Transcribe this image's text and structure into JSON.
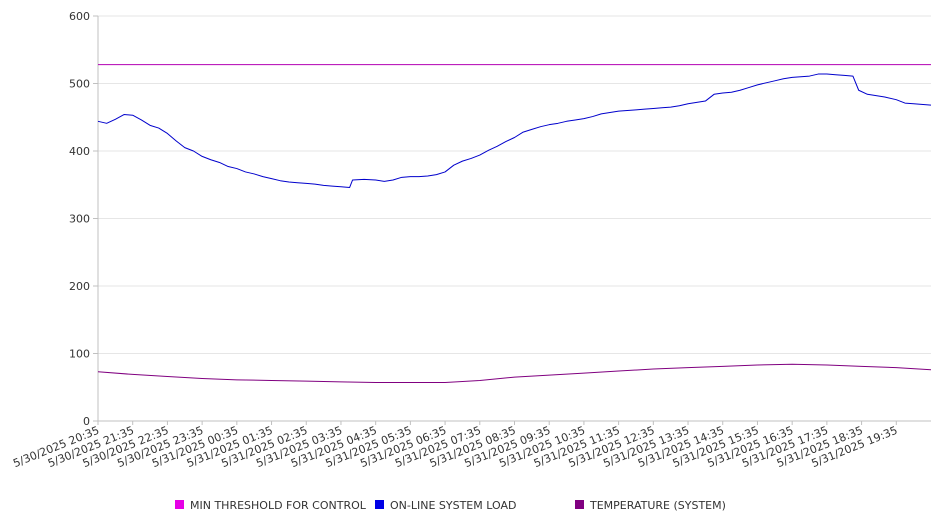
{
  "chart_data": {
    "type": "line",
    "title": "",
    "xlabel": "",
    "ylabel": "",
    "ylim": [
      0,
      600
    ],
    "yticks": [
      0,
      100,
      200,
      300,
      400,
      500,
      600
    ],
    "grid": true,
    "legend_position": "bottom",
    "colors": {
      "grid": "#e6e6e6",
      "axis": "#c0c0c0"
    },
    "x_tick_labels": [
      "5/30/2025 20:35",
      "5/30/2025 21:35",
      "5/30/2025 22:35",
      "5/30/2025 23:35",
      "5/31/2025 00:35",
      "5/31/2025 01:35",
      "5/31/2025 02:35",
      "5/31/2025 03:35",
      "5/31/2025 04:35",
      "5/31/2025 05:35",
      "5/31/2025 06:35",
      "5/31/2025 07:35",
      "5/31/2025 08:35",
      "5/31/2025 09:35",
      "5/31/2025 10:35",
      "5/31/2025 11:35",
      "5/31/2025 12:35",
      "5/31/2025 13:35",
      "5/31/2025 14:35",
      "5/31/2025 15:35",
      "5/31/2025 16:35",
      "5/31/2025 17:35",
      "5/31/2025 18:35",
      "5/31/2025 19:35"
    ],
    "x_range": [
      "5/30/2025 20:35",
      "5/31/2025 20:35"
    ],
    "series": [
      {
        "name": "MIN THRESHOLD FOR CONTROL",
        "color": "#b300b3",
        "legend_color": "#e600e6",
        "points": [
          [
            "5/30/2025 20:35",
            528
          ],
          [
            "5/31/2025 20:35",
            528
          ]
        ]
      },
      {
        "name": "ON-LINE SYSTEM LOAD",
        "color": "#0000cc",
        "legend_color": "#0000e6",
        "points": [
          [
            "5/30/2025 20:35",
            444
          ],
          [
            "5/30/2025 20:50",
            441
          ],
          [
            "5/30/2025 21:05",
            447
          ],
          [
            "5/30/2025 21:20",
            454
          ],
          [
            "5/30/2025 21:35",
            453
          ],
          [
            "5/30/2025 21:50",
            446
          ],
          [
            "5/30/2025 22:05",
            438
          ],
          [
            "5/30/2025 22:20",
            434
          ],
          [
            "5/30/2025 22:35",
            426
          ],
          [
            "5/30/2025 22:50",
            415
          ],
          [
            "5/30/2025 23:05",
            405
          ],
          [
            "5/30/2025 23:20",
            400
          ],
          [
            "5/30/2025 23:35",
            392
          ],
          [
            "5/30/2025 23:50",
            387
          ],
          [
            "5/31/2025 00:05",
            383
          ],
          [
            "5/31/2025 00:20",
            377
          ],
          [
            "5/31/2025 00:35",
            374
          ],
          [
            "5/31/2025 00:50",
            369
          ],
          [
            "5/31/2025 01:05",
            366
          ],
          [
            "5/31/2025 01:20",
            362
          ],
          [
            "5/31/2025 01:35",
            359
          ],
          [
            "5/31/2025 01:50",
            356
          ],
          [
            "5/31/2025 02:05",
            354
          ],
          [
            "5/31/2025 02:20",
            353
          ],
          [
            "5/31/2025 02:35",
            352
          ],
          [
            "5/31/2025 02:50",
            351
          ],
          [
            "5/31/2025 03:05",
            349
          ],
          [
            "5/31/2025 03:20",
            348
          ],
          [
            "5/31/2025 03:35",
            347
          ],
          [
            "5/31/2025 03:50",
            346
          ],
          [
            "5/31/2025 03:55",
            357
          ],
          [
            "5/31/2025 04:15",
            358
          ],
          [
            "5/31/2025 04:35",
            357
          ],
          [
            "5/31/2025 04:50",
            355
          ],
          [
            "5/31/2025 05:05",
            357
          ],
          [
            "5/31/2025 05:20",
            361
          ],
          [
            "5/31/2025 05:35",
            362
          ],
          [
            "5/31/2025 05:50",
            362
          ],
          [
            "5/31/2025 06:05",
            363
          ],
          [
            "5/31/2025 06:20",
            365
          ],
          [
            "5/31/2025 06:35",
            369
          ],
          [
            "5/31/2025 06:50",
            379
          ],
          [
            "5/31/2025 07:05",
            385
          ],
          [
            "5/31/2025 07:20",
            389
          ],
          [
            "5/31/2025 07:35",
            394
          ],
          [
            "5/31/2025 07:50",
            401
          ],
          [
            "5/31/2025 08:05",
            407
          ],
          [
            "5/31/2025 08:20",
            414
          ],
          [
            "5/31/2025 08:35",
            420
          ],
          [
            "5/31/2025 08:50",
            428
          ],
          [
            "5/31/2025 09:05",
            432
          ],
          [
            "5/31/2025 09:20",
            436
          ],
          [
            "5/31/2025 09:35",
            439
          ],
          [
            "5/31/2025 09:50",
            441
          ],
          [
            "5/31/2025 10:05",
            444
          ],
          [
            "5/31/2025 10:20",
            446
          ],
          [
            "5/31/2025 10:35",
            448
          ],
          [
            "5/31/2025 10:50",
            451
          ],
          [
            "5/31/2025 11:05",
            455
          ],
          [
            "5/31/2025 11:20",
            457
          ],
          [
            "5/31/2025 11:35",
            459
          ],
          [
            "5/31/2025 11:50",
            460
          ],
          [
            "5/31/2025 12:05",
            461
          ],
          [
            "5/31/2025 12:20",
            462
          ],
          [
            "5/31/2025 12:35",
            463
          ],
          [
            "5/31/2025 12:50",
            464
          ],
          [
            "5/31/2025 13:05",
            465
          ],
          [
            "5/31/2025 13:20",
            467
          ],
          [
            "5/31/2025 13:35",
            470
          ],
          [
            "5/31/2025 13:50",
            472
          ],
          [
            "5/31/2025 14:05",
            474
          ],
          [
            "5/31/2025 14:20",
            484
          ],
          [
            "5/31/2025 14:35",
            486
          ],
          [
            "5/31/2025 14:50",
            487
          ],
          [
            "5/31/2025 15:05",
            490
          ],
          [
            "5/31/2025 15:20",
            494
          ],
          [
            "5/31/2025 15:35",
            498
          ],
          [
            "5/31/2025 15:50",
            501
          ],
          [
            "5/31/2025 16:05",
            504
          ],
          [
            "5/31/2025 16:20",
            507
          ],
          [
            "5/31/2025 16:35",
            509
          ],
          [
            "5/31/2025 16:50",
            510
          ],
          [
            "5/31/2025 17:05",
            511
          ],
          [
            "5/31/2025 17:20",
            514
          ],
          [
            "5/31/2025 17:35",
            514
          ],
          [
            "5/31/2025 17:50",
            513
          ],
          [
            "5/31/2025 18:05",
            512
          ],
          [
            "5/31/2025 18:20",
            511
          ],
          [
            "5/31/2025 18:30",
            490
          ],
          [
            "5/31/2025 18:45",
            484
          ],
          [
            "5/31/2025 19:00",
            482
          ],
          [
            "5/31/2025 19:15",
            480
          ],
          [
            "5/31/2025 19:35",
            476
          ],
          [
            "5/31/2025 19:50",
            471
          ],
          [
            "5/31/2025 20:05",
            470
          ],
          [
            "5/31/2025 20:35",
            468
          ]
        ]
      },
      {
        "name": "TEMPERATURE (SYSTEM)",
        "color": "#800080",
        "legend_color": "#800080",
        "points": [
          [
            "5/30/2025 20:35",
            73
          ],
          [
            "5/30/2025 21:35",
            69
          ],
          [
            "5/30/2025 22:35",
            66
          ],
          [
            "5/30/2025 23:35",
            63
          ],
          [
            "5/31/2025 00:35",
            61
          ],
          [
            "5/31/2025 01:35",
            60
          ],
          [
            "5/31/2025 02:35",
            59
          ],
          [
            "5/31/2025 03:35",
            58
          ],
          [
            "5/31/2025 04:35",
            57
          ],
          [
            "5/31/2025 05:35",
            57
          ],
          [
            "5/31/2025 06:35",
            57
          ],
          [
            "5/31/2025 07:35",
            60
          ],
          [
            "5/31/2025 08:35",
            65
          ],
          [
            "5/31/2025 09:35",
            68
          ],
          [
            "5/31/2025 10:35",
            71
          ],
          [
            "5/31/2025 11:35",
            74
          ],
          [
            "5/31/2025 12:35",
            77
          ],
          [
            "5/31/2025 13:35",
            79
          ],
          [
            "5/31/2025 14:35",
            81
          ],
          [
            "5/31/2025 15:35",
            83
          ],
          [
            "5/31/2025 16:35",
            84
          ],
          [
            "5/31/2025 17:35",
            83
          ],
          [
            "5/31/2025 18:35",
            81
          ],
          [
            "5/31/2025 19:35",
            79
          ],
          [
            "5/31/2025 20:35",
            76
          ]
        ]
      }
    ]
  }
}
